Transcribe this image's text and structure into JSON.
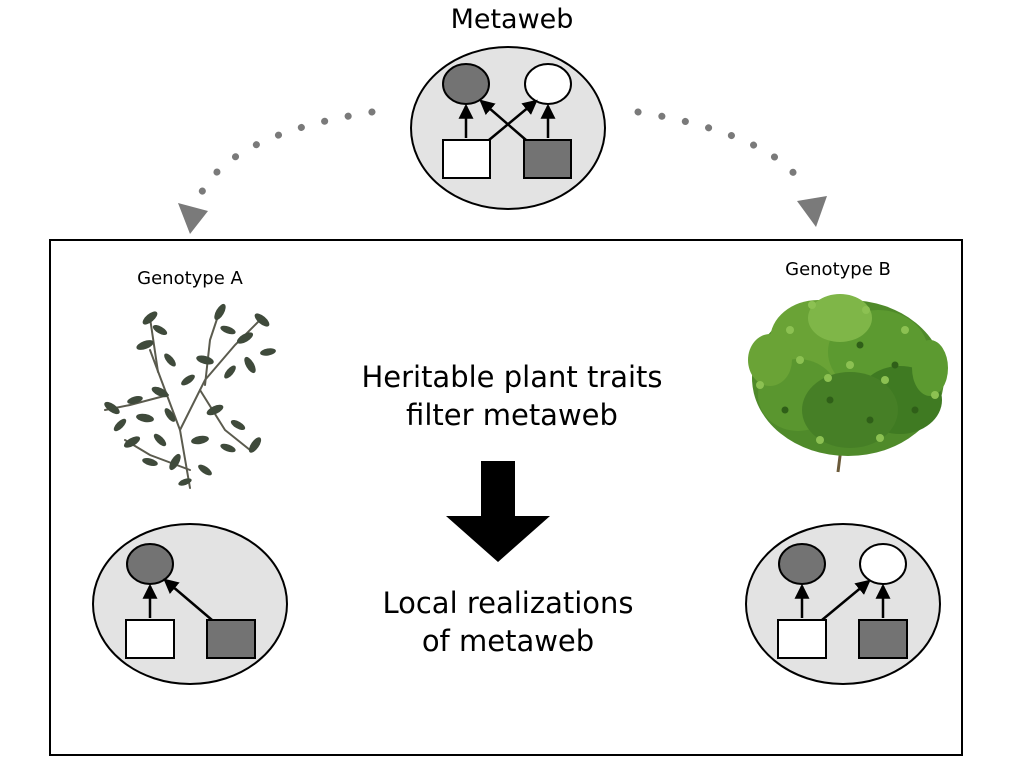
{
  "title": "Metaweb",
  "genotype_a": {
    "label": "Genotype A"
  },
  "genotype_b": {
    "label": "Genotype B"
  },
  "process": {
    "line1": "Heritable plant traits",
    "line2": "filter metaweb"
  },
  "outcome": {
    "line1": "Local realizations",
    "line2": "of metaweb"
  },
  "colors": {
    "node_grey": "#737373",
    "node_white": "#ffffff",
    "network_bg": "#e3e3e3",
    "arrow_grey": "#7a7a7a",
    "outline": "#000000",
    "foliage_a": "#3f4a3b",
    "foliage_b": "#4f8a2a"
  }
}
